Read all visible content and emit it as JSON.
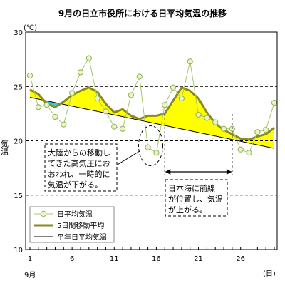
{
  "chart_data": {
    "type": "line",
    "title": "9月の日立市役所における日平均気温の推移",
    "y_unit": "(℃)",
    "ylabel": "気温",
    "x_unit": "(日)",
    "x_month_label": "9月",
    "xlim": [
      1,
      30
    ],
    "ylim": [
      10,
      30
    ],
    "x_ticks": [
      1,
      6,
      11,
      16,
      21,
      26
    ],
    "y_ticks": [
      10,
      15,
      20,
      25,
      30
    ],
    "dashed_grid_y": [
      15,
      20,
      25
    ],
    "series": [
      {
        "name": "日平均気温",
        "color": "#a9c46c",
        "marker": "circle",
        "x": [
          1,
          2,
          3,
          4,
          5,
          6,
          7,
          8,
          9,
          10,
          11,
          12,
          13,
          14,
          15,
          16,
          17,
          18,
          19,
          20,
          21,
          22,
          23,
          24,
          25,
          26,
          27,
          28,
          29,
          30
        ],
        "y": [
          26.0,
          23.1,
          23.3,
          22.2,
          21.5,
          24.4,
          26.3,
          27.6,
          23.9,
          22.7,
          21.3,
          21.1,
          24.2,
          25.9,
          19.4,
          18.9,
          23.3,
          24.9,
          23.9,
          27.3,
          22.4,
          22.1,
          21.7,
          21.1,
          21.1,
          19.2,
          18.9,
          20.8,
          21.0,
          23.5
        ]
      },
      {
        "name": "5日間移動平均",
        "color": "#8a8a20",
        "x": [
          1,
          2,
          3,
          4,
          5,
          6,
          7,
          8,
          9,
          10,
          11,
          12,
          13,
          14,
          15,
          16,
          17,
          18,
          19,
          20,
          21,
          22,
          23,
          24,
          25,
          26,
          27,
          28,
          29,
          30
        ],
        "y": [
          24.7,
          24.3,
          23.4,
          23.1,
          23.6,
          24.2,
          24.6,
          24.9,
          24.5,
          23.4,
          22.6,
          22.9,
          22.3,
          22.0,
          22.3,
          22.3,
          22.5,
          23.7,
          24.9,
          24.6,
          23.9,
          22.6,
          21.6,
          21.0,
          20.6,
          20.2,
          20.1,
          20.4,
          20.6,
          21.2
        ]
      },
      {
        "name": "平年日平均気温",
        "color": "#000000",
        "x": [
          1,
          30
        ],
        "y": [
          24.0,
          19.3
        ]
      }
    ],
    "fill_above_color": "#ffff00",
    "fill_below_color": "#33cccc",
    "annotations": [
      {
        "id": "drop",
        "lines": [
          "大陸からの移動し",
          "てきた高気圧にお",
          "おわれ、一時的に",
          "気温が下がる。"
        ]
      },
      {
        "id": "rise",
        "lines": [
          "日本海に前線",
          "が位置し、気温",
          "が上がる。"
        ],
        "range_x": [
          17,
          25
        ]
      }
    ]
  }
}
